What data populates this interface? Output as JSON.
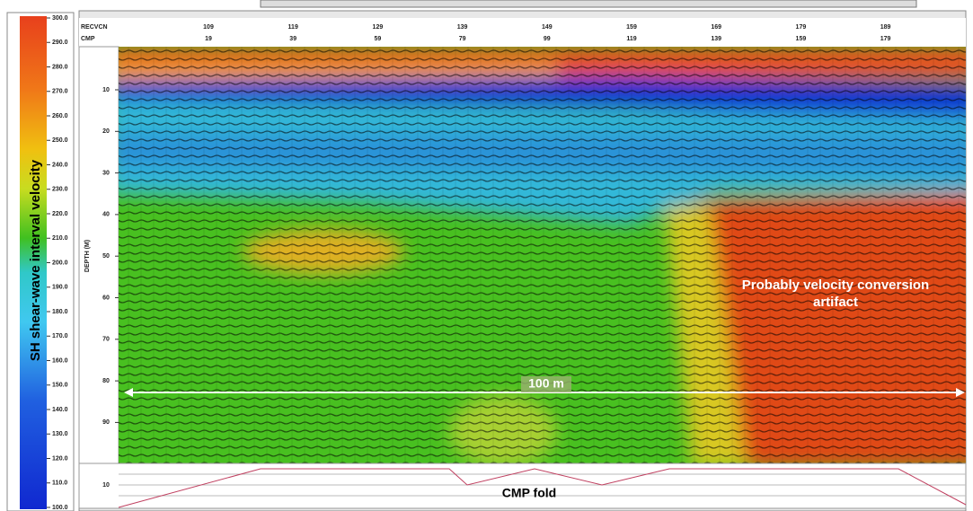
{
  "colorbar": {
    "title": "SH shear-wave interval velocity",
    "ticks": [
      "300.0",
      "290.0",
      "280.0",
      "270.0",
      "260.0",
      "250.0",
      "240.0",
      "230.0",
      "220.0",
      "210.0",
      "200.0",
      "190.0",
      "180.0",
      "170.0",
      "160.0",
      "150.0",
      "140.0",
      "130.0",
      "120.0",
      "110.0",
      "100.0"
    ]
  },
  "header": {
    "rows": [
      {
        "label": "RECVCN",
        "values": [
          "109",
          "119",
          "129",
          "139",
          "149",
          "159",
          "169",
          "179",
          "189"
        ]
      },
      {
        "label": "CMP",
        "values": [
          "19",
          "39",
          "59",
          "79",
          "99",
          "119",
          "139",
          "159",
          "179"
        ]
      }
    ]
  },
  "depth_axis": {
    "label": "DEPTH (M)",
    "ticks": [
      "10",
      "20",
      "30",
      "40",
      "50",
      "60",
      "70",
      "80",
      "90"
    ]
  },
  "fold_axis": {
    "ticks": [
      "10"
    ]
  },
  "annotations": {
    "artifact": "Probably velocity conversion artifact",
    "scale": "100 m",
    "fold": "CMP fold"
  }
}
